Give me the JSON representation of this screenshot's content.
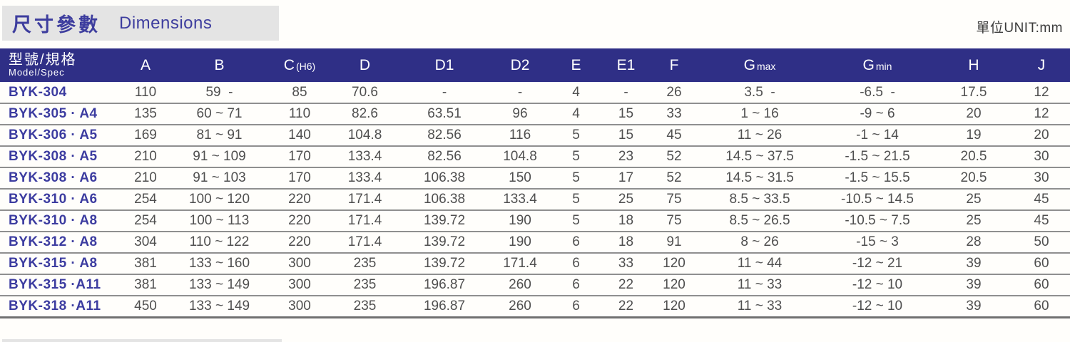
{
  "page": {
    "title_zh": "尺寸參數",
    "title_en": "Dimensions",
    "unit_label": "單位UNIT:mm"
  },
  "colors": {
    "header_bar": "#2f2f86",
    "title_text": "#3d3d9e",
    "model_text": "#3c3ca0",
    "value_text": "#4f4f4f",
    "title_box_bg": "#e4e4e4",
    "unit_text": "#3c3c3c",
    "row_separator": "#8f8f8f",
    "table_bottom_border": "#707070"
  },
  "table": {
    "columns": [
      {
        "id": "model",
        "zh": "型號/規格",
        "en": "Model/Spec"
      },
      {
        "id": "A",
        "label": "A"
      },
      {
        "id": "B",
        "label": "B"
      },
      {
        "id": "C",
        "label": "C",
        "sub": "(H6)"
      },
      {
        "id": "D",
        "label": "D"
      },
      {
        "id": "D1",
        "label": "D1"
      },
      {
        "id": "D2",
        "label": "D2"
      },
      {
        "id": "E",
        "label": "E"
      },
      {
        "id": "E1",
        "label": "E1"
      },
      {
        "id": "F",
        "label": "F"
      },
      {
        "id": "Gmax",
        "label": "G",
        "sub": "max"
      },
      {
        "id": "Gmin",
        "label": "G",
        "sub": "min"
      },
      {
        "id": "H",
        "label": "H"
      },
      {
        "id": "J",
        "label": "J"
      }
    ],
    "rows": [
      {
        "model": "BYK-304",
        "values": [
          "110",
          "59  -",
          "85",
          "70.6",
          "-",
          "-",
          "4",
          "-",
          "26",
          "3.5  -",
          "-6.5  -",
          "17.5",
          "12"
        ]
      },
      {
        "model": "BYK-305 · A4",
        "values": [
          "135",
          "60 ~ 71",
          "110",
          "82.6",
          "63.51",
          "96",
          "4",
          "15",
          "33",
          "1 ~ 16",
          "-9 ~ 6",
          "20",
          "12"
        ]
      },
      {
        "model": "BYK-306 · A5",
        "values": [
          "169",
          "81 ~ 91",
          "140",
          "104.8",
          "82.56",
          "116",
          "5",
          "15",
          "45",
          "11 ~ 26",
          "-1 ~ 14",
          "19",
          "20"
        ]
      },
      {
        "model": "BYK-308 · A5",
        "values": [
          "210",
          "91 ~ 109",
          "170",
          "133.4",
          "82.56",
          "104.8",
          "5",
          "23",
          "52",
          "14.5 ~ 37.5",
          "-1.5 ~ 21.5",
          "20.5",
          "30"
        ]
      },
      {
        "model": "BYK-308 · A6",
        "values": [
          "210",
          "91 ~ 103",
          "170",
          "133.4",
          "106.38",
          "150",
          "5",
          "17",
          "52",
          "14.5 ~ 31.5",
          "-1.5 ~ 15.5",
          "20.5",
          "30"
        ]
      },
      {
        "model": "BYK-310 · A6",
        "values": [
          "254",
          "100 ~ 120",
          "220",
          "171.4",
          "106.38",
          "133.4",
          "5",
          "25",
          "75",
          "8.5 ~ 33.5",
          "-10.5 ~ 14.5",
          "25",
          "45"
        ]
      },
      {
        "model": "BYK-310 · A8",
        "values": [
          "254",
          "100 ~ 113",
          "220",
          "171.4",
          "139.72",
          "190",
          "5",
          "18",
          "75",
          "8.5 ~ 26.5",
          "-10.5 ~ 7.5",
          "25",
          "45"
        ]
      },
      {
        "model": "BYK-312 · A8",
        "values": [
          "304",
          "110 ~ 122",
          "220",
          "171.4",
          "139.72",
          "190",
          "6",
          "18",
          "91",
          "8 ~ 26",
          "-15 ~ 3",
          "28",
          "50"
        ]
      },
      {
        "model": "BYK-315 · A8",
        "values": [
          "381",
          "133 ~ 160",
          "300",
          "235",
          "139.72",
          "171.4",
          "6",
          "33",
          "120",
          "11 ~ 44",
          "-12 ~ 21",
          "39",
          "60"
        ]
      },
      {
        "model": "BYK-315 ·A11",
        "values": [
          "381",
          "133 ~ 149",
          "300",
          "235",
          "196.87",
          "260",
          "6",
          "22",
          "120",
          "11 ~ 33",
          "-12 ~ 10",
          "39",
          "60"
        ]
      },
      {
        "model": "BYK-318 ·A11",
        "values": [
          "450",
          "133 ~ 149",
          "300",
          "235",
          "196.87",
          "260",
          "6",
          "22",
          "120",
          "11 ~ 33",
          "-12 ~ 10",
          "39",
          "60"
        ]
      }
    ]
  }
}
